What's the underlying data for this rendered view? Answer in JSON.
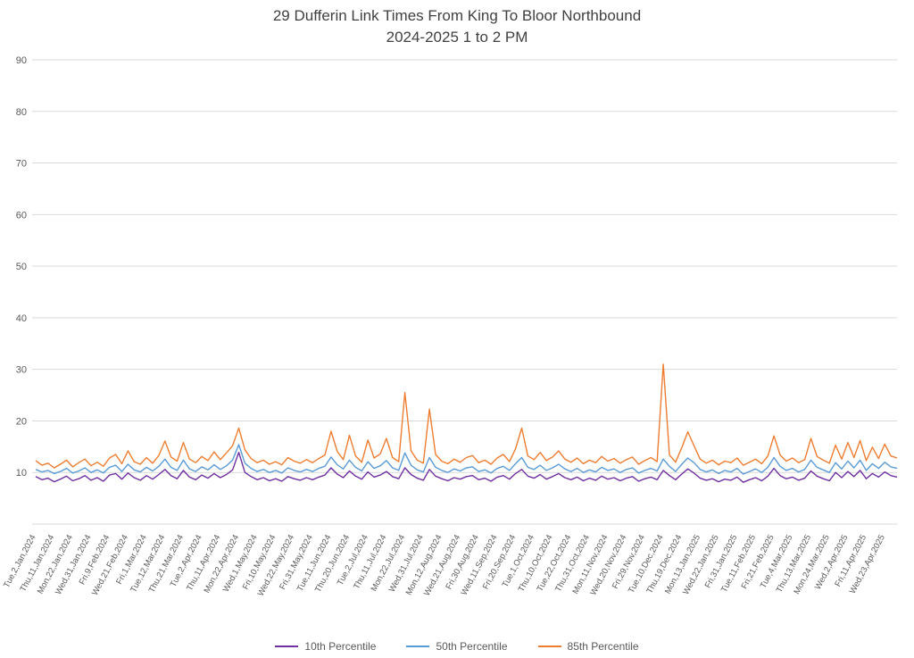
{
  "chart_data": {
    "type": "line",
    "title": "29 Dufferin Link Times From King To Bloor Northbound",
    "subtitle": "2024-2025 1 to 2 PM",
    "xlabel": "",
    "ylabel": "",
    "y_max": 90,
    "y_ticks": [
      10,
      20,
      30,
      40,
      50,
      60,
      70,
      80,
      90
    ],
    "grid": "horizontal",
    "legend_position": "bottom",
    "gridline_color": "#d9d9d9",
    "axis_label_color": "#595959",
    "points_per_tick": 3,
    "x_tick_labels": [
      "Tue,2,Jan,2024",
      "Thu,11,Jan,2024",
      "Mon,22,Jan,2024",
      "Wed,31,Jan,2024",
      "Fri,9,Feb,2024",
      "Wed,21,Feb,2024",
      "Fri,1,Mar,2024",
      "Tue,12,Mar,2024",
      "Thu,21,Mar,2024",
      "Tue,2,Apr,2024",
      "Thu,11,Apr,2024",
      "Mon,22,Apr,2024",
      "Wed,1,May,2024",
      "Fri,10,May,2024",
      "Wed,22,May,2024",
      "Fri,31,May,2024",
      "Tue,11,Jun,2024",
      "Thu,20,Jun,2024",
      "Tue,2,Jul,2024",
      "Thu,11,Jul,2024",
      "Mon,22,Jul,2024",
      "Wed,31,Jul,2024",
      "Mon,12,Aug,2024",
      "Wed,21,Aug,2024",
      "Fri,30,Aug,2024",
      "Wed,11,Sep,2024",
      "Fri,20,Sep,2024",
      "Tue,1,Oct,2024",
      "Thu,10,Oct,2024",
      "Tue,22,Oct,2024",
      "Thu,31,Oct,2024",
      "Mon,11,Nov,2024",
      "Wed,20,Nov,2024",
      "Fri,29,Nov,2024",
      "Tue,10,Dec,2024",
      "Thu,19,Dec,2024",
      "Mon,13,Jan,2025",
      "Wed,22,Jan,2025",
      "Fri,31,Jan,2025",
      "Tue,11,Feb,2025",
      "Fri,21,Feb,2025",
      "Tue,4,Mar,2025",
      "Thu,13,Mar,2025",
      "Mon,24,Mar,2025",
      "Wed,2,Apr,2025",
      "Fri,11,Apr,2025",
      "Wed,23,Apr,2025"
    ],
    "series": [
      {
        "name": "10th Percentile",
        "color": "#7030a0",
        "values": [
          9.2,
          8.6,
          8.9,
          8.2,
          8.7,
          9.3,
          8.4,
          8.8,
          9.4,
          8.5,
          9.0,
          8.3,
          9.5,
          9.8,
          8.7,
          9.9,
          9.0,
          8.5,
          9.4,
          8.7,
          9.6,
          10.6,
          9.4,
          8.8,
          10.4,
          9.1,
          8.6,
          9.5,
          8.9,
          9.8,
          9.0,
          9.6,
          10.5,
          13.9,
          10.0,
          9.2,
          8.6,
          9.0,
          8.4,
          8.8,
          8.3,
          9.2,
          8.8,
          8.5,
          9.0,
          8.6,
          9.1,
          9.5,
          10.9,
          9.7,
          9.0,
          10.3,
          9.3,
          8.7,
          10.1,
          9.1,
          9.5,
          10.2,
          9.2,
          8.8,
          10.9,
          9.6,
          8.9,
          8.5,
          10.6,
          9.3,
          8.8,
          8.4,
          9.0,
          8.7,
          9.2,
          9.4,
          8.6,
          8.9,
          8.3,
          9.1,
          9.4,
          8.7,
          9.8,
          10.6,
          9.3,
          8.9,
          9.6,
          8.7,
          9.2,
          9.8,
          9.0,
          8.6,
          9.1,
          8.4,
          8.9,
          8.5,
          9.3,
          8.7,
          9.0,
          8.4,
          8.9,
          9.2,
          8.3,
          8.8,
          9.1,
          8.6,
          10.4,
          9.4,
          8.6,
          9.7,
          10.7,
          9.9,
          8.9,
          8.5,
          8.8,
          8.2,
          8.7,
          8.5,
          9.1,
          8.1,
          8.6,
          9.0,
          8.4,
          9.3,
          10.8,
          9.4,
          8.8,
          9.1,
          8.5,
          8.9,
          10.3,
          9.3,
          8.8,
          8.4,
          10.0,
          9.0,
          10.2,
          9.2,
          10.4,
          8.8,
          9.8,
          9.1,
          10.1,
          9.4,
          9.1
        ]
      },
      {
        "name": "50th Percentile",
        "color": "#5b9bd5",
        "values": [
          10.6,
          10.1,
          10.4,
          9.8,
          10.2,
          10.8,
          9.9,
          10.3,
          10.9,
          10.0,
          10.5,
          9.9,
          11.0,
          11.4,
          10.2,
          11.6,
          10.5,
          10.1,
          11.0,
          10.3,
          11.2,
          12.6,
          11.0,
          10.4,
          12.4,
          10.7,
          10.2,
          11.1,
          10.5,
          11.5,
          10.6,
          11.3,
          12.4,
          15.4,
          11.8,
          10.8,
          10.2,
          10.6,
          10.0,
          10.4,
          9.9,
          10.9,
          10.4,
          10.1,
          10.6,
          10.2,
          10.8,
          11.2,
          13.0,
          11.5,
          10.7,
          12.4,
          11.0,
          10.3,
          12.1,
          10.8,
          11.3,
          12.3,
          10.9,
          10.4,
          13.8,
          11.4,
          10.5,
          10.1,
          12.9,
          11.0,
          10.4,
          10.0,
          10.7,
          10.3,
          10.9,
          11.1,
          10.2,
          10.5,
          9.9,
          10.8,
          11.2,
          10.4,
          11.7,
          12.9,
          11.0,
          10.6,
          11.4,
          10.4,
          10.9,
          11.6,
          10.7,
          10.2,
          10.8,
          10.0,
          10.5,
          10.1,
          11.0,
          10.4,
          10.7,
          10.0,
          10.6,
          10.9,
          9.9,
          10.4,
          10.8,
          10.3,
          12.6,
          11.2,
          10.2,
          11.6,
          12.8,
          11.9,
          10.6,
          10.1,
          10.5,
          9.8,
          10.4,
          10.1,
          10.8,
          9.7,
          10.2,
          10.7,
          10.0,
          11.0,
          12.9,
          11.2,
          10.4,
          10.8,
          10.1,
          10.6,
          12.4,
          11.0,
          10.5,
          10.0,
          11.9,
          10.7,
          12.2,
          10.9,
          12.4,
          10.4,
          11.7,
          10.8,
          12.0,
          11.1,
          10.8
        ]
      },
      {
        "name": "85th Percentile",
        "color": "#ed7d31",
        "values": [
          12.3,
          11.4,
          11.8,
          10.9,
          11.6,
          12.4,
          11.1,
          11.9,
          12.6,
          11.3,
          12.0,
          11.2,
          12.8,
          13.5,
          11.7,
          14.2,
          12.1,
          11.6,
          12.9,
          11.8,
          13.3,
          16.1,
          13.0,
          12.2,
          15.8,
          12.6,
          11.9,
          13.1,
          12.3,
          14.0,
          12.5,
          13.8,
          15.2,
          18.6,
          14.4,
          12.7,
          11.9,
          12.4,
          11.6,
          12.1,
          11.5,
          12.9,
          12.2,
          11.8,
          12.5,
          11.9,
          12.7,
          13.4,
          18.0,
          14.1,
          12.5,
          17.2,
          13.2,
          12.0,
          16.3,
          12.8,
          13.6,
          16.6,
          12.9,
          12.1,
          25.5,
          14.2,
          12.4,
          11.8,
          22.3,
          13.5,
          12.2,
          11.7,
          12.6,
          12.0,
          12.9,
          13.3,
          11.9,
          12.4,
          11.6,
          12.8,
          13.5,
          12.1,
          14.6,
          18.6,
          13.2,
          12.5,
          13.9,
          12.3,
          13.0,
          14.2,
          12.6,
          12.0,
          12.8,
          11.7,
          12.4,
          11.9,
          13.1,
          12.2,
          12.7,
          11.8,
          12.5,
          13.0,
          11.6,
          12.3,
          12.9,
          12.1,
          31.0,
          13.4,
          12.0,
          14.8,
          17.9,
          15.2,
          12.6,
          11.8,
          12.4,
          11.5,
          12.2,
          11.9,
          12.8,
          11.4,
          12.0,
          12.6,
          11.7,
          13.2,
          17.1,
          13.4,
          12.2,
          12.8,
          11.9,
          12.5,
          16.6,
          13.1,
          12.4,
          11.8,
          15.3,
          12.6,
          15.8,
          12.9,
          16.2,
          12.3,
          14.9,
          12.7,
          15.5,
          13.2,
          12.8
        ]
      }
    ]
  }
}
